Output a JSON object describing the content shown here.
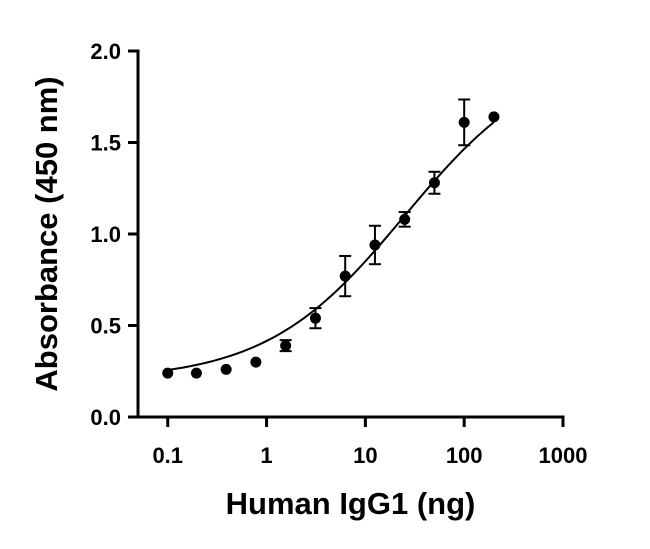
{
  "chart_data": {
    "type": "scatter",
    "xlabel": "Human IgG1 (ng)",
    "ylabel": "Absorbance (450 nm)",
    "xscale": "log",
    "xlim": [
      0.05,
      1000
    ],
    "ylim": [
      0,
      2.0
    ],
    "xticks": [
      0.1,
      1,
      10,
      100,
      1000
    ],
    "xtick_labels": [
      "0.1",
      "1",
      "10",
      "100",
      "1000"
    ],
    "yticks": [
      0.0,
      0.5,
      1.0,
      1.5,
      2.0
    ],
    "ytick_labels": [
      "0.0",
      "0.5",
      "1.0",
      "1.5",
      "2.0"
    ],
    "grid": false,
    "legend": "none",
    "fit": "four-parameter logistic curve",
    "series": [
      {
        "points": [
          {
            "x": 0.1,
            "y": 0.24,
            "err": 0.0
          },
          {
            "x": 0.195,
            "y": 0.24,
            "err": 0.0
          },
          {
            "x": 0.39,
            "y": 0.26,
            "err": 0.0
          },
          {
            "x": 0.78,
            "y": 0.3,
            "err": 0.0
          },
          {
            "x": 1.56,
            "y": 0.39,
            "err": 0.03
          },
          {
            "x": 3.125,
            "y": 0.54,
            "err": 0.055
          },
          {
            "x": 6.25,
            "y": 0.77,
            "err": 0.11
          },
          {
            "x": 12.5,
            "y": 0.94,
            "err": 0.105
          },
          {
            "x": 25,
            "y": 1.08,
            "err": 0.04
          },
          {
            "x": 50,
            "y": 1.28,
            "err": 0.06
          },
          {
            "x": 100,
            "y": 1.61,
            "err": 0.125
          },
          {
            "x": 200,
            "y": 1.64,
            "err": 0.0
          }
        ]
      }
    ]
  }
}
